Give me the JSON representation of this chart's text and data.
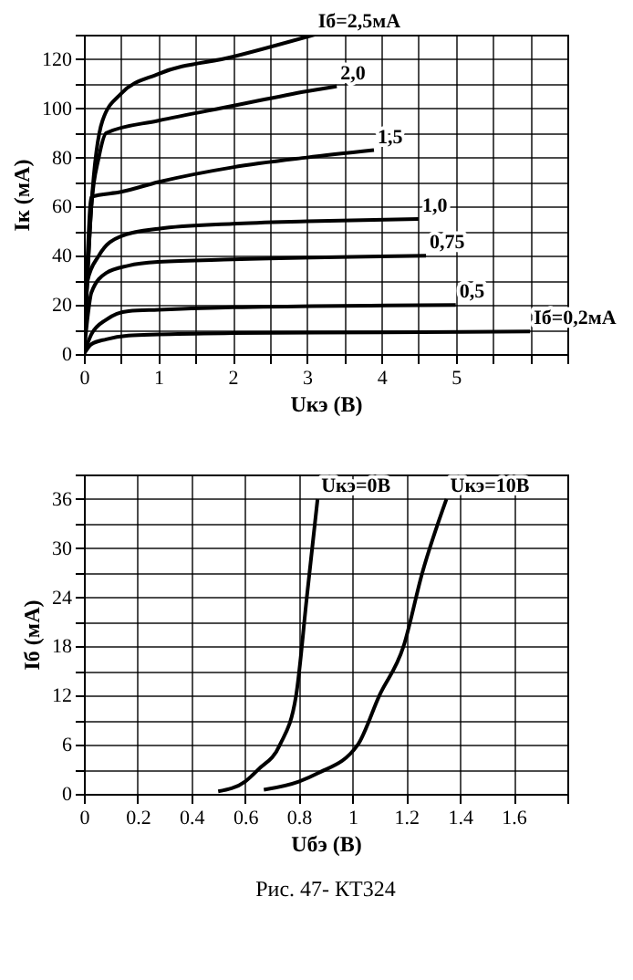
{
  "chart_data": [
    {
      "type": "line",
      "xlabel": "Uкэ (В)",
      "ylabel": "Iк (мА)",
      "xlim": [
        0,
        6.5
      ],
      "ylim": [
        0,
        130
      ],
      "xticks": [
        0,
        {
          "value": 0.5,
          "label": null
        },
        1,
        {
          "value": 1.5,
          "label": null
        },
        2,
        {
          "value": 2.5,
          "label": null
        },
        3,
        {
          "value": 3.5,
          "label": null
        },
        4,
        {
          "value": 4.5,
          "label": null
        },
        5,
        {
          "value": 5.5,
          "label": null
        },
        {
          "value": 6,
          "label": null
        },
        {
          "value": 6.5,
          "label": null
        }
      ],
      "yticks": [
        0,
        {
          "value": 10,
          "label": null
        },
        20,
        {
          "value": 30,
          "label": null
        },
        40,
        {
          "value": 50,
          "label": null
        },
        60,
        {
          "value": 70,
          "label": null
        },
        80,
        {
          "value": 90,
          "label": null
        },
        100,
        {
          "value": 110,
          "label": null
        },
        120,
        {
          "value": 130,
          "label": null
        }
      ],
      "grid": true,
      "legend": false,
      "marker": "none",
      "line_style": "solid",
      "series": [
        {
          "name": "Iб=2,5мА",
          "color": "#000000",
          "x": [
            0,
            0.1,
            0.25,
            0.5,
            1,
            2,
            3.1
          ],
          "values": [
            0,
            60,
            95,
            106,
            114,
            121,
            130
          ]
        },
        {
          "name": "2,0",
          "color": "#000000",
          "x": [
            0,
            0.1,
            0.2,
            0.3,
            1,
            2,
            3,
            3.4
          ],
          "values": [
            0,
            60,
            80,
            90,
            95,
            101,
            107,
            109
          ]
        },
        {
          "name": "1,5",
          "color": "#000000",
          "x": [
            0,
            0.05,
            0.1,
            0.5,
            1,
            2,
            3,
            3.9
          ],
          "values": [
            0,
            40,
            64,
            66,
            70,
            76,
            80,
            83
          ]
        },
        {
          "name": "1,0",
          "color": "#000000",
          "x": [
            0,
            0.05,
            0.2,
            0.5,
            1,
            2,
            3,
            4.5
          ],
          "values": [
            0,
            30,
            40,
            48,
            51,
            53,
            54,
            55
          ]
        },
        {
          "name": "0,75",
          "color": "#000000",
          "x": [
            0,
            0.05,
            0.1,
            0.3,
            0.6,
            1,
            2,
            4.6
          ],
          "values": [
            0,
            15,
            25,
            33,
            36,
            37.5,
            38.5,
            40
          ]
        },
        {
          "name": "0,5",
          "color": "#000000",
          "x": [
            0,
            0.1,
            0.3,
            0.6,
            1,
            2,
            5
          ],
          "values": [
            0,
            8,
            14,
            17.5,
            18,
            19,
            20
          ]
        },
        {
          "name": "Iб=0,2мА",
          "color": "#000000",
          "x": [
            0,
            0.1,
            0.3,
            0.6,
            1,
            2,
            4,
            6
          ],
          "values": [
            0,
            4,
            6,
            7.5,
            8,
            8.5,
            8.8,
            9.2
          ]
        }
      ]
    },
    {
      "type": "line",
      "xlabel": "Uбэ (В)",
      "ylabel": "Iб (мА)",
      "xlim": [
        0,
        1.8
      ],
      "ylim": [
        0,
        39
      ],
      "xticks": [
        0,
        0.2,
        0.4,
        0.6,
        0.8,
        1,
        1.2,
        1.4,
        1.6,
        {
          "value": 1.8,
          "label": null
        }
      ],
      "yticks": [
        0,
        {
          "value": 3,
          "label": null
        },
        6,
        {
          "value": 9,
          "label": null
        },
        12,
        {
          "value": 15,
          "label": null
        },
        18,
        {
          "value": 21,
          "label": null
        },
        24,
        {
          "value": 27,
          "label": null
        },
        30,
        {
          "value": 33,
          "label": null
        },
        36,
        {
          "value": 39,
          "label": null
        }
      ],
      "grid": true,
      "legend": false,
      "marker": "none",
      "line_style": "solid",
      "annotations": [
        "Рис. 47- КТ324"
      ],
      "series": [
        {
          "name": "Uкэ=0В",
          "color": "#000000",
          "x": [
            0.5,
            0.6,
            0.65,
            0.73,
            0.79,
            0.83,
            0.87
          ],
          "values": [
            0.3,
            1.5,
            3,
            6,
            12,
            24,
            36
          ]
        },
        {
          "name": "Uкэ=10В",
          "color": "#000000",
          "x": [
            0.67,
            0.8,
            0.87,
            1.02,
            1.1,
            1.19,
            1.26,
            1.35
          ],
          "values": [
            0.5,
            1.5,
            2.5,
            6,
            12,
            18,
            27,
            36
          ]
        }
      ]
    }
  ]
}
